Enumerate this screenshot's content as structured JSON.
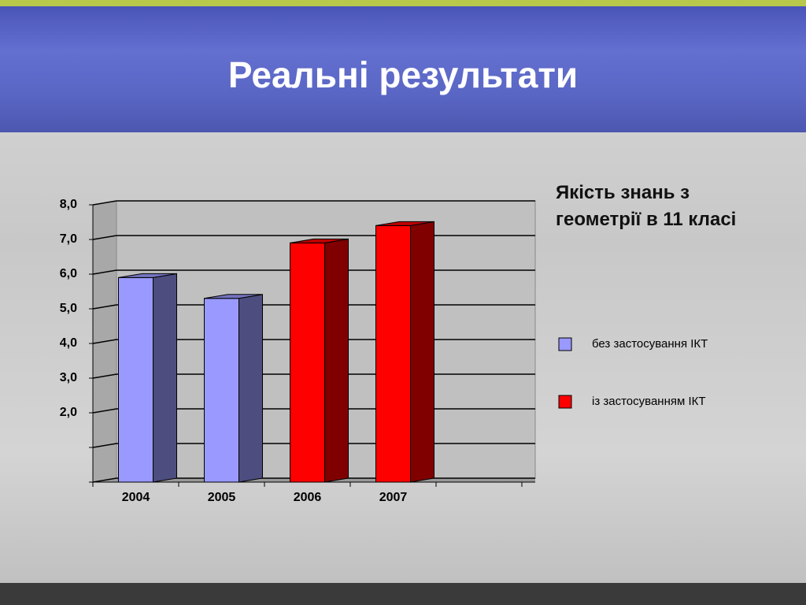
{
  "chart_data": {
    "type": "bar3d",
    "slide_title": "Реальні результати",
    "title": "Якість знань з геометрії в 11 класі",
    "categories": [
      "2004",
      "2005",
      "2006",
      "2007"
    ],
    "series": [
      {
        "name": "без застосування ІКТ",
        "color": "#9999ff",
        "values": [
          5.9,
          5.3,
          null,
          null
        ]
      },
      {
        "name": "із застосуванням ІКТ",
        "color": "#ff0000",
        "values": [
          null,
          null,
          6.9,
          7.4
        ]
      }
    ],
    "ylim": [
      0,
      8
    ],
    "yticks": [
      {
        "value": 0,
        "label": null
      },
      {
        "value": 1,
        "label": null
      },
      {
        "value": 2,
        "label": "2,0"
      },
      {
        "value": 3,
        "label": "3,0"
      },
      {
        "value": 4,
        "label": "4,0"
      },
      {
        "value": 5,
        "label": "5,0"
      },
      {
        "value": 6,
        "label": "6,0"
      },
      {
        "value": 7,
        "label": "7,0"
      },
      {
        "value": 8,
        "label": "8,0"
      }
    ],
    "grid": true
  }
}
